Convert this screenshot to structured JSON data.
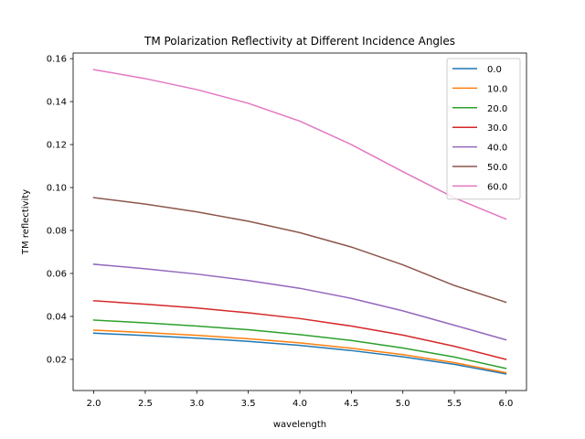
{
  "chart_data": {
    "type": "line",
    "title": "TM Polarization Reflectivity at Different Incidence Angles",
    "xlabel": "wavelength",
    "ylabel": "TM reflectivity",
    "xlim": [
      1.8,
      6.2
    ],
    "ylim": [
      0.0055,
      0.1626
    ],
    "xticks": [
      2.0,
      2.5,
      3.0,
      3.5,
      4.0,
      4.5,
      5.0,
      5.5,
      6.0
    ],
    "xtick_labels": [
      "2.0",
      "2.5",
      "3.0",
      "3.5",
      "4.0",
      "4.5",
      "5.0",
      "5.5",
      "6.0"
    ],
    "yticks": [
      0.02,
      0.04,
      0.06,
      0.08,
      0.1,
      0.12,
      0.14,
      0.16
    ],
    "ytick_labels": [
      "0.02",
      "0.04",
      "0.06",
      "0.08",
      "0.10",
      "0.12",
      "0.14",
      "0.16"
    ],
    "grid": false,
    "legend_position": "top-right",
    "x": [
      2.0,
      2.5,
      3.0,
      3.5,
      4.0,
      4.5,
      5.0,
      5.5,
      6.0
    ],
    "series": [
      {
        "name": "0.0",
        "color": "#1f77b4",
        "values": [
          0.0322,
          0.0311,
          0.0299,
          0.0284,
          0.0265,
          0.0241,
          0.0212,
          0.0177,
          0.0132
        ]
      },
      {
        "name": "10.0",
        "color": "#ff7f0e",
        "values": [
          0.0336,
          0.0325,
          0.0312,
          0.0296,
          0.0277,
          0.0252,
          0.0222,
          0.0185,
          0.0138
        ]
      },
      {
        "name": "20.0",
        "color": "#2ca02c",
        "values": [
          0.0383,
          0.037,
          0.0355,
          0.0338,
          0.0315,
          0.0288,
          0.0253,
          0.0211,
          0.0158
        ]
      },
      {
        "name": "30.0",
        "color": "#d62728",
        "values": [
          0.0473,
          0.0457,
          0.0439,
          0.0417,
          0.039,
          0.0355,
          0.0313,
          0.0261,
          0.02
        ]
      },
      {
        "name": "40.0",
        "color": "#9467bd",
        "values": [
          0.0643,
          0.0622,
          0.0597,
          0.0567,
          0.0531,
          0.0484,
          0.0426,
          0.0359,
          0.0291
        ]
      },
      {
        "name": "50.0",
        "color": "#8c564b",
        "values": [
          0.0953,
          0.0923,
          0.0887,
          0.0843,
          0.079,
          0.0723,
          0.064,
          0.0544,
          0.0466
        ]
      },
      {
        "name": "60.0",
        "color": "#e377c2",
        "values": [
          0.1549,
          0.1507,
          0.1456,
          0.1392,
          0.1309,
          0.12,
          0.1074,
          0.0952,
          0.0853
        ]
      }
    ]
  }
}
